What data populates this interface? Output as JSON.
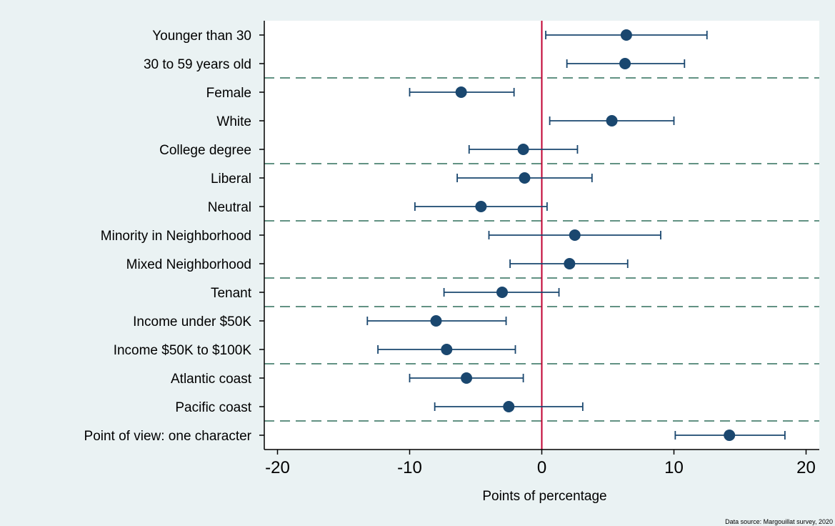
{
  "chart_data": {
    "type": "scatter",
    "subtype": "coefficient-plot-with-confidence-intervals",
    "orientation": "horizontal",
    "xlabel": "Points of percentage",
    "source_note": "Data source: Margouillat survey, 2020",
    "xlim": [
      -21,
      21
    ],
    "xticks": [
      -20,
      -10,
      0,
      10,
      20
    ],
    "xtick_labels": [
      "-20",
      "-10",
      "0",
      "10",
      "20"
    ],
    "reference_line_x": 0,
    "grid": false,
    "categories": [
      "Younger than 30",
      "30 to 59 years old",
      "Female",
      "White",
      "College degree",
      "Liberal",
      "Neutral",
      "Minority in Neighborhood",
      "Mixed Neighborhood",
      "Tenant",
      "Income under $50K",
      "Income $50K to $100K",
      "Atlantic coast",
      "Pacific coast",
      "Point of view: one character"
    ],
    "estimates": [
      6.4,
      6.3,
      -6.1,
      5.3,
      -1.4,
      -1.3,
      -4.6,
      2.5,
      2.1,
      -3.0,
      -8.0,
      -7.2,
      -5.7,
      -2.5,
      14.2
    ],
    "ci_low": [
      0.3,
      1.9,
      -10.0,
      0.6,
      -5.5,
      -6.4,
      -9.6,
      -4.0,
      -2.4,
      -7.4,
      -13.2,
      -12.4,
      -10.0,
      -8.1,
      10.1
    ],
    "ci_high": [
      12.5,
      10.8,
      -2.1,
      10.0,
      2.7,
      3.8,
      0.4,
      9.0,
      6.5,
      1.3,
      -2.7,
      -2.0,
      -1.4,
      3.1,
      18.4
    ],
    "group_separators_after_index": [
      1,
      4,
      6,
      8,
      9,
      11,
      13
    ],
    "colors": {
      "marker": "#1a476f",
      "reference_line": "#c00030",
      "separator": "#2e6e5a",
      "plot_background": "#ffffff",
      "page_background": "#eaf2f3"
    }
  }
}
